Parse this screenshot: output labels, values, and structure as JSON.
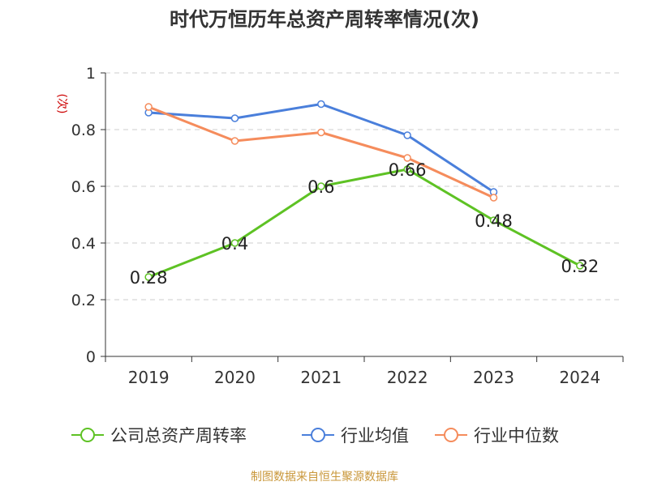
{
  "chart_data": {
    "type": "line",
    "title": "时代万恒历年总资产周转率情况(次)",
    "ylabel": "(次)",
    "categories": [
      "2019",
      "2020",
      "2021",
      "2022",
      "2023",
      "2024"
    ],
    "ylim": [
      0,
      1
    ],
    "yticks": [
      0,
      0.2,
      0.4,
      0.6,
      0.8,
      1
    ],
    "ytick_labels": [
      "0",
      "0.2",
      "0.4",
      "0.6",
      "0.8",
      "1"
    ],
    "grid": true,
    "legend_position": "bottom",
    "series": [
      {
        "name": "公司总资产周转率",
        "color": "#5ec224",
        "values": [
          0.28,
          0.4,
          0.6,
          0.66,
          0.48,
          0.32
        ],
        "labels": [
          "0.28",
          "0.4",
          "0.6",
          "0.66",
          "0.48",
          "0.32"
        ]
      },
      {
        "name": "行业均值",
        "color": "#4a7fdb",
        "values": [
          0.86,
          0.84,
          0.89,
          0.78,
          0.58,
          null
        ]
      },
      {
        "name": "行业中位数",
        "color": "#f58c5c",
        "values": [
          0.88,
          0.76,
          0.79,
          0.7,
          0.56,
          null
        ]
      }
    ]
  },
  "source": "制图数据来自恒生聚源数据库"
}
